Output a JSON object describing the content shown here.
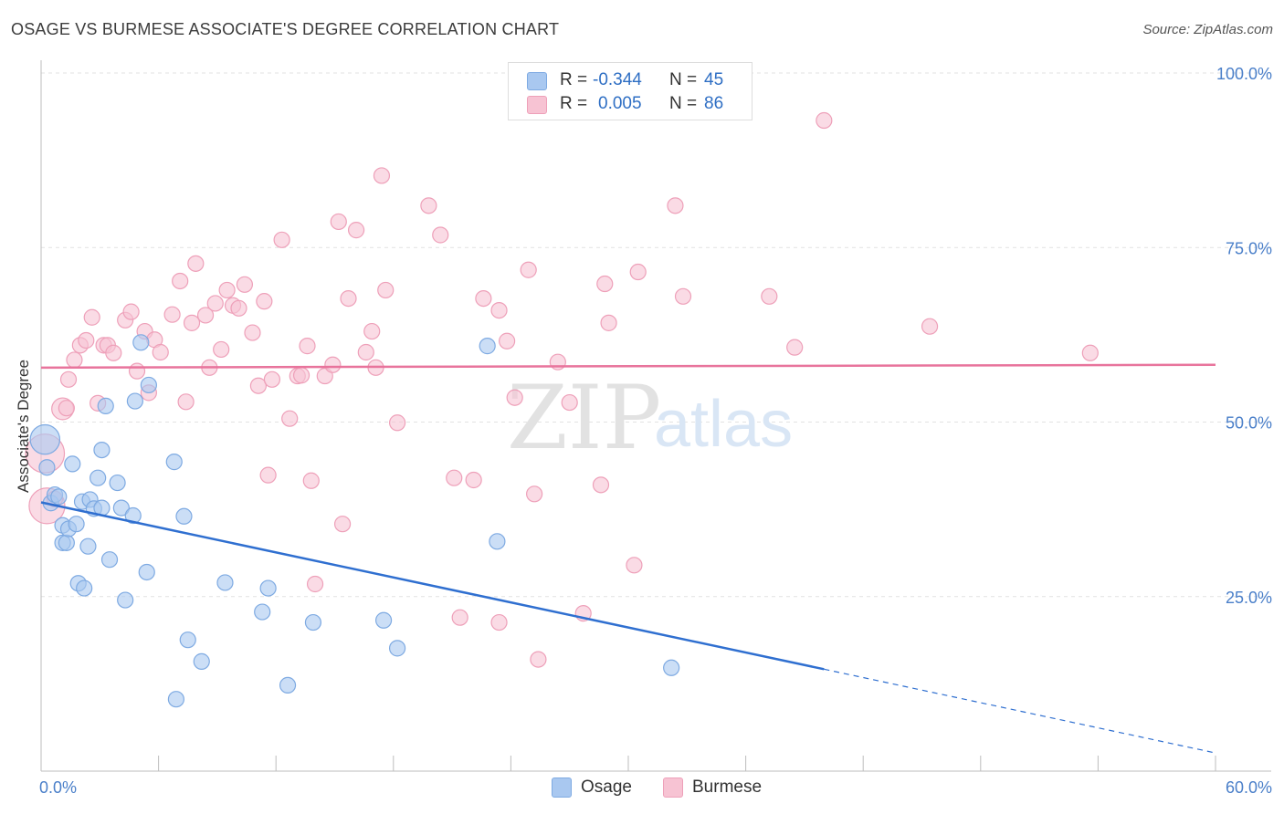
{
  "header": {
    "title": "OSAGE VS BURMESE ASSOCIATE'S DEGREE CORRELATION CHART",
    "source": "Source: ZipAtlas.com"
  },
  "watermark": {
    "zip": "ZIP",
    "atlas": "atlas"
  },
  "legend": {
    "rows": [
      {
        "label": "R =",
        "r_value": "-0.344",
        "n_label": "N =",
        "n_value": "45"
      },
      {
        "label": "R =",
        "r_value": "0.005",
        "n_label": "N =",
        "n_value": "86"
      }
    ],
    "series_names": [
      "Osage",
      "Burmese"
    ]
  },
  "colors": {
    "osage_fill": "#a9c8f0",
    "osage_stroke": "#7eaae2",
    "osage_line": "#2f6fd0",
    "burmese_fill": "#f7c3d3",
    "burmese_stroke": "#eea0b9",
    "burmese_line": "#e8749c",
    "tick_label": "#4a7fc9"
  },
  "chart_data": {
    "type": "scatter",
    "title": "OSAGE VS BURMESE ASSOCIATE'S DEGREE CORRELATION CHART",
    "xlabel": "",
    "ylabel": "Associate's Degree",
    "xlim": [
      0,
      60
    ],
    "ylim": [
      0,
      100
    ],
    "x_tick_labels": [
      "0.0%",
      "60.0%"
    ],
    "y_ticks": [
      25,
      50,
      75,
      100
    ],
    "y_tick_labels": [
      "25.0%",
      "50.0%",
      "75.0%",
      "100.0%"
    ],
    "grid": true,
    "series": [
      {
        "name": "Osage",
        "r": -0.344,
        "n": 45,
        "trend": {
          "x0": 0,
          "y0": 38.5,
          "x1": 40,
          "y1": 14.6,
          "dashed_to_x": 60,
          "dashed_to_y": 2.6
        },
        "points": [
          [
            0.2,
            47.5,
            1.9
          ],
          [
            0.3,
            43.5,
            1.0
          ],
          [
            0.5,
            38.4,
            1.0
          ],
          [
            0.7,
            39.6,
            1.0
          ],
          [
            0.9,
            39.3,
            1.0
          ],
          [
            1.1,
            35.2,
            1.0
          ],
          [
            1.1,
            32.7,
            1.0
          ],
          [
            1.3,
            32.7,
            1.0
          ],
          [
            1.4,
            34.7,
            1.0
          ],
          [
            1.6,
            44.0,
            1.0
          ],
          [
            1.8,
            35.4,
            1.0
          ],
          [
            1.9,
            26.9,
            1.0
          ],
          [
            2.1,
            38.6,
            1.0
          ],
          [
            2.2,
            26.2,
            1.0
          ],
          [
            2.4,
            32.2,
            1.0
          ],
          [
            2.5,
            38.9,
            1.0
          ],
          [
            2.7,
            37.6,
            1.0
          ],
          [
            2.9,
            42.0,
            1.0
          ],
          [
            3.1,
            46.0,
            1.0
          ],
          [
            3.1,
            37.7,
            1.0
          ],
          [
            3.3,
            52.3,
            1.0
          ],
          [
            3.5,
            30.3,
            1.0
          ],
          [
            3.9,
            41.3,
            1.0
          ],
          [
            4.1,
            37.7,
            1.0
          ],
          [
            4.3,
            24.5,
            1.0
          ],
          [
            4.7,
            36.6,
            1.0
          ],
          [
            4.8,
            53.0,
            1.0
          ],
          [
            5.1,
            61.4,
            1.0
          ],
          [
            5.4,
            28.5,
            1.0
          ],
          [
            5.5,
            55.3,
            1.0
          ],
          [
            6.8,
            44.3,
            1.0
          ],
          [
            6.9,
            10.3,
            1.0
          ],
          [
            7.3,
            36.5,
            1.0
          ],
          [
            7.5,
            18.8,
            1.0
          ],
          [
            8.2,
            15.7,
            1.0
          ],
          [
            9.4,
            27.0,
            1.0
          ],
          [
            11.3,
            22.8,
            1.0
          ],
          [
            11.6,
            26.2,
            1.0
          ],
          [
            12.6,
            12.3,
            1.0
          ],
          [
            13.9,
            21.3,
            1.0
          ],
          [
            17.5,
            21.6,
            1.0
          ],
          [
            18.2,
            17.6,
            1.0
          ],
          [
            22.8,
            60.9,
            1.0
          ],
          [
            23.3,
            32.9,
            1.0
          ],
          [
            32.2,
            14.8,
            1.0
          ]
        ]
      },
      {
        "name": "Burmese",
        "r": 0.005,
        "n": 86,
        "trend": {
          "x0": 0,
          "y0": 57.8,
          "x1": 60,
          "y1": 58.2
        },
        "points": [
          [
            0.2,
            45.5,
            2.5
          ],
          [
            0.3,
            38.0,
            2.3
          ],
          [
            0.7,
            39.0,
            1.0
          ],
          [
            1.1,
            51.9,
            1.4
          ],
          [
            1.3,
            52.0,
            1.0
          ],
          [
            1.4,
            56.1,
            1.0
          ],
          [
            1.7,
            58.9,
            1.0
          ],
          [
            2.0,
            61.0,
            1.0
          ],
          [
            2.3,
            61.7,
            1.0
          ],
          [
            2.6,
            65.0,
            1.0
          ],
          [
            2.9,
            52.7,
            1.0
          ],
          [
            3.2,
            61.0,
            1.0
          ],
          [
            3.4,
            61.0,
            1.0
          ],
          [
            3.7,
            59.9,
            1.0
          ],
          [
            4.3,
            64.6,
            1.0
          ],
          [
            4.6,
            65.8,
            1.0
          ],
          [
            4.9,
            57.3,
            1.0
          ],
          [
            5.3,
            63.0,
            1.0
          ],
          [
            5.5,
            54.2,
            1.0
          ],
          [
            5.8,
            61.8,
            1.0
          ],
          [
            6.1,
            60.0,
            1.0
          ],
          [
            6.7,
            65.4,
            1.0
          ],
          [
            7.1,
            70.2,
            1.0
          ],
          [
            7.4,
            52.9,
            1.0
          ],
          [
            7.7,
            64.2,
            1.0
          ],
          [
            7.9,
            72.7,
            1.0
          ],
          [
            8.4,
            65.3,
            1.0
          ],
          [
            8.6,
            57.8,
            1.0
          ],
          [
            8.9,
            67.0,
            1.0
          ],
          [
            9.2,
            60.4,
            1.0
          ],
          [
            9.5,
            68.9,
            1.0
          ],
          [
            9.8,
            66.7,
            1.0
          ],
          [
            10.1,
            66.3,
            1.0
          ],
          [
            10.4,
            69.7,
            1.0
          ],
          [
            10.8,
            62.8,
            1.0
          ],
          [
            11.1,
            55.2,
            1.0
          ],
          [
            11.4,
            67.3,
            1.0
          ],
          [
            11.6,
            42.4,
            1.0
          ],
          [
            11.8,
            56.1,
            1.0
          ],
          [
            12.3,
            76.1,
            1.0
          ],
          [
            12.7,
            50.5,
            1.0
          ],
          [
            13.1,
            56.6,
            1.0
          ],
          [
            13.3,
            56.7,
            1.0
          ],
          [
            13.6,
            60.9,
            1.0
          ],
          [
            13.8,
            41.6,
            1.0
          ],
          [
            14.0,
            26.8,
            1.0
          ],
          [
            14.5,
            56.6,
            1.0
          ],
          [
            14.9,
            58.2,
            1.0
          ],
          [
            15.2,
            78.7,
            1.0
          ],
          [
            15.4,
            35.4,
            1.0
          ],
          [
            15.7,
            67.7,
            1.0
          ],
          [
            16.1,
            77.5,
            1.0
          ],
          [
            16.6,
            60.0,
            1.0
          ],
          [
            16.9,
            63.0,
            1.0
          ],
          [
            17.1,
            57.8,
            1.0
          ],
          [
            17.4,
            85.3,
            1.0
          ],
          [
            17.6,
            68.9,
            1.0
          ],
          [
            18.2,
            49.9,
            1.0
          ],
          [
            19.8,
            81.0,
            1.0
          ],
          [
            20.4,
            76.8,
            1.0
          ],
          [
            21.1,
            42.0,
            1.0
          ],
          [
            21.4,
            22.0,
            1.0
          ],
          [
            22.1,
            41.7,
            1.0
          ],
          [
            22.6,
            67.7,
            1.0
          ],
          [
            23.4,
            21.3,
            1.0
          ],
          [
            23.4,
            66.0,
            1.0
          ],
          [
            23.8,
            61.6,
            1.0
          ],
          [
            24.2,
            53.5,
            1.0
          ],
          [
            24.9,
            71.8,
            1.0
          ],
          [
            25.2,
            39.7,
            1.0
          ],
          [
            25.4,
            16.0,
            1.0
          ],
          [
            26.4,
            58.6,
            1.0
          ],
          [
            27.0,
            52.8,
            1.0
          ],
          [
            27.7,
            22.6,
            1.0
          ],
          [
            28.6,
            41.0,
            1.0
          ],
          [
            28.8,
            69.8,
            1.0
          ],
          [
            29.0,
            64.2,
            1.0
          ],
          [
            30.3,
            29.5,
            1.0
          ],
          [
            30.5,
            71.5,
            1.0
          ],
          [
            32.4,
            81.0,
            1.0
          ],
          [
            32.8,
            68.0,
            1.0
          ],
          [
            37.2,
            68.0,
            1.0
          ],
          [
            38.5,
            60.7,
            1.0
          ],
          [
            40.0,
            93.2,
            1.0
          ],
          [
            45.4,
            63.7,
            1.0
          ],
          [
            53.6,
            59.9,
            1.0
          ]
        ]
      }
    ]
  }
}
